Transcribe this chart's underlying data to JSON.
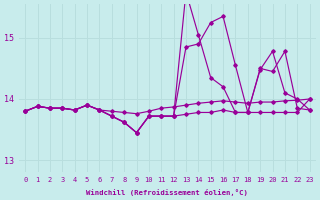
{
  "xlabel": "Windchill (Refroidissement éolien,°C)",
  "bg_color": "#c8ecec",
  "line_color": "#990099",
  "grid_color": "#b8dede",
  "xlim": [
    -0.5,
    23.5
  ],
  "ylim": [
    12.8,
    15.55
  ],
  "yticks": [
    13,
    14,
    15
  ],
  "xticks": [
    0,
    1,
    2,
    3,
    4,
    5,
    6,
    7,
    8,
    9,
    10,
    11,
    12,
    13,
    14,
    15,
    16,
    17,
    18,
    19,
    20,
    21,
    22,
    23
  ],
  "series": [
    [
      13.8,
      13.88,
      13.85,
      13.85,
      13.82,
      13.9,
      13.82,
      13.8,
      13.78,
      13.76,
      13.8,
      13.85,
      13.87,
      13.9,
      13.93,
      13.95,
      13.97,
      13.95,
      13.93,
      13.95,
      13.95,
      13.97,
      13.98,
      14.0
    ],
    [
      13.8,
      13.88,
      13.85,
      13.85,
      13.82,
      13.9,
      13.82,
      13.72,
      13.62,
      13.45,
      13.72,
      13.72,
      13.72,
      14.85,
      14.9,
      15.25,
      15.35,
      14.55,
      13.78,
      14.5,
      14.45,
      14.78,
      13.85,
      13.82
    ],
    [
      13.8,
      13.88,
      13.85,
      13.85,
      13.82,
      13.9,
      13.82,
      13.72,
      13.62,
      13.45,
      13.72,
      13.72,
      13.72,
      15.75,
      15.05,
      14.35,
      14.2,
      13.78,
      13.78,
      14.48,
      14.78,
      14.1,
      14.0,
      13.82
    ],
    [
      13.8,
      13.88,
      13.85,
      13.85,
      13.82,
      13.9,
      13.82,
      13.72,
      13.62,
      13.45,
      13.72,
      13.72,
      13.72,
      13.75,
      13.78,
      13.78,
      13.82,
      13.78,
      13.78,
      13.78,
      13.78,
      13.78,
      13.78,
      14.0
    ]
  ]
}
